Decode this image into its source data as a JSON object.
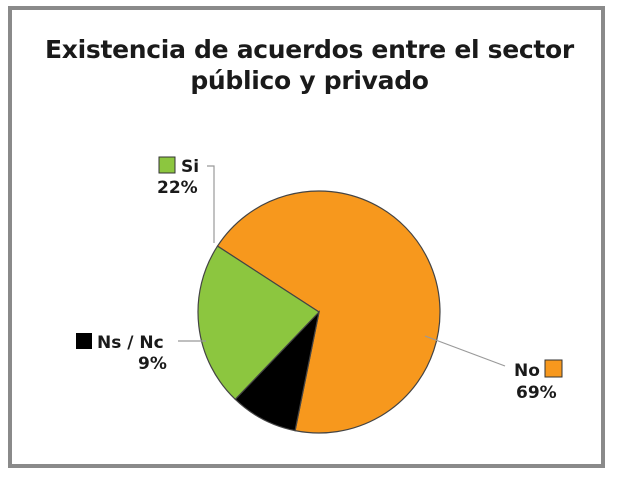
{
  "chart_data": {
    "type": "pie",
    "title_line1": "Existencia de acuerdos entre el sector",
    "title_line2": "público y privado",
    "slices": [
      {
        "label": "No",
        "value": 69,
        "value_label": "69%",
        "color": "#f7981d"
      },
      {
        "label": "Ns / Nc",
        "value": 9,
        "value_label": "9%",
        "color": "#000000"
      },
      {
        "label": "Si",
        "value": 22,
        "value_label": "22%",
        "color": "#8cc63f"
      }
    ],
    "legend_placement": "callout-labels"
  }
}
